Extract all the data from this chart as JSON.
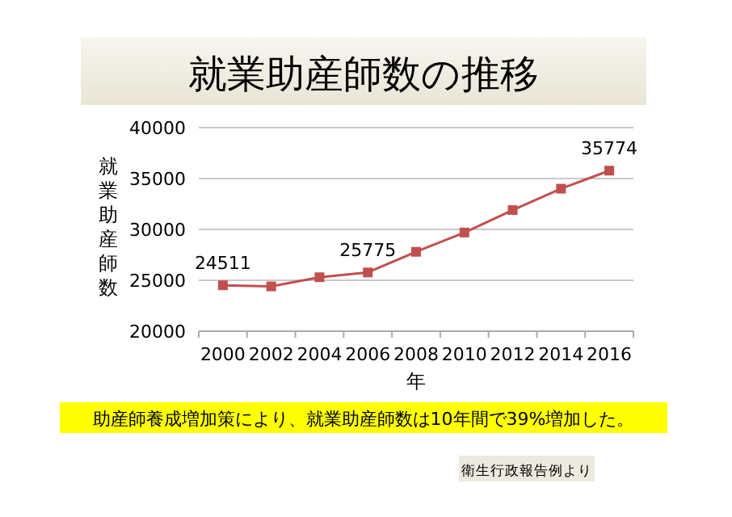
{
  "chart_data": {
    "type": "line",
    "title": "就業助産師数の推移",
    "xlabel": "年",
    "ylabel": "就業助産師数",
    "categories": [
      "2000",
      "2002",
      "2004",
      "2006",
      "2008",
      "2010",
      "2012",
      "2014",
      "2016"
    ],
    "series": [
      {
        "color": "#c0504d",
        "values": [
          24511,
          24400,
          25300,
          25775,
          27800,
          29700,
          31900,
          34000,
          35774
        ],
        "value_labels": [
          "24511",
          null,
          null,
          "25775",
          null,
          null,
          null,
          null,
          "35774"
        ]
      }
    ],
    "ylim": [
      20000,
      40000
    ],
    "yticks": [
      20000,
      25000,
      30000,
      35000,
      40000
    ],
    "grid": "y",
    "marker": "square",
    "annotations": [
      "助産師養成増加策により、就業助産師数は10年間で39%増加した。",
      "衛生行政報告例より"
    ]
  }
}
